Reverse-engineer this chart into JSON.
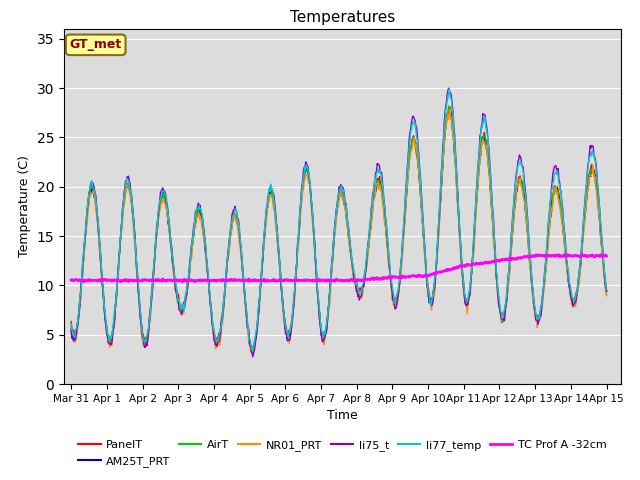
{
  "title": "Temperatures",
  "xlabel": "Time",
  "ylabel": "Temperature (C)",
  "ylim": [
    0,
    36
  ],
  "yticks": [
    0,
    5,
    10,
    15,
    20,
    25,
    30,
    35
  ],
  "bg_color": "#dcdcdc",
  "fig_color": "#ffffff",
  "gt_met_label": "GT_met",
  "gt_met_text_color": "#8b0000",
  "gt_met_box_color": "#ffff99",
  "gt_met_border_color": "#8b6914",
  "series_colors": {
    "PanelT": "#ff0000",
    "AM25T_PRT": "#0000cd",
    "AirT": "#00cc00",
    "NR01_PRT": "#ff8c00",
    "li75_t": "#8800cc",
    "li77_temp": "#00cccc",
    "TC Prof A -32cm": "#ff00ff"
  },
  "x_tick_labels": [
    "Mar 31",
    "Apr 1",
    "Apr 2",
    "Apr 3",
    "Apr 4",
    "Apr 5",
    "Apr 6",
    "Apr 7",
    "Apr 8",
    "Apr 9",
    "Apr 10",
    "Apr 11",
    "Apr 12",
    "Apr 13",
    "Apr 14",
    "Apr 15"
  ],
  "x_tick_positions": [
    0,
    1,
    2,
    3,
    4,
    5,
    6,
    7,
    8,
    9,
    10,
    11,
    12,
    13,
    14,
    15
  ],
  "day_peaks": [
    19.5,
    20.5,
    20.5,
    18.5,
    17.0,
    17.5,
    21.0,
    22.5,
    17.5,
    23.0,
    26.5,
    29.0,
    22.5,
    20.0,
    20.0,
    23.5
  ],
  "night_mins": [
    5.0,
    4.5,
    4.0,
    8.0,
    4.5,
    3.5,
    5.0,
    4.5,
    9.5,
    8.5,
    8.5,
    8.5,
    7.0,
    6.5,
    8.5,
    8.5
  ],
  "tc_prof_vals": [
    10.5,
    10.5,
    10.5,
    10.5,
    10.5,
    10.5,
    10.5,
    10.5,
    10.5,
    10.8,
    11.0,
    12.0,
    12.5,
    13.0,
    13.0,
    13.0
  ],
  "peak_hour": 14,
  "samples_per_day": 48
}
